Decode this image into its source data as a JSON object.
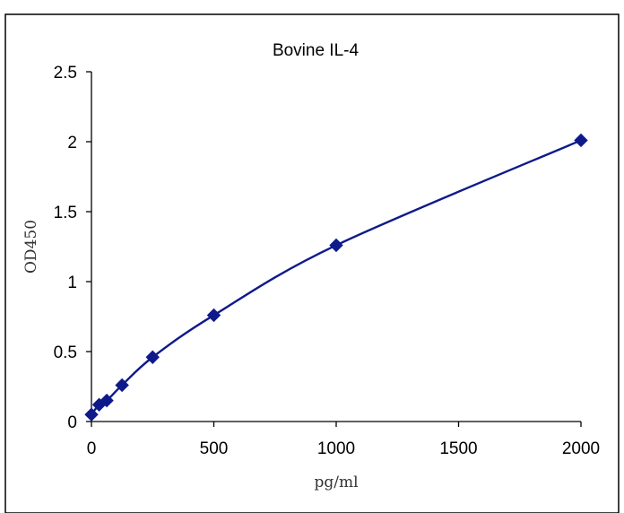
{
  "chart_data": {
    "type": "scatter",
    "title": "Bovine  IL-4",
    "xlabel": "pg/ml",
    "ylabel": "OD450",
    "xlim": [
      0,
      2000
    ],
    "ylim": [
      0,
      2.5
    ],
    "x_ticks": [
      "0",
      "500",
      "1000",
      "1500",
      "2000"
    ],
    "y_ticks": [
      "0",
      "0.5",
      "1",
      "1.5",
      "2",
      "2.5"
    ],
    "grid": false,
    "legend": "none",
    "series": [
      {
        "x": [
          0,
          31.25,
          62.5,
          125,
          250,
          500,
          1000,
          2000
        ],
        "y": [
          0.05,
          0.12,
          0.15,
          0.26,
          0.46,
          0.76,
          1.26,
          2.01
        ],
        "marker": "diamond",
        "fit_curve": true,
        "color": "#0f1a8a"
      }
    ]
  }
}
